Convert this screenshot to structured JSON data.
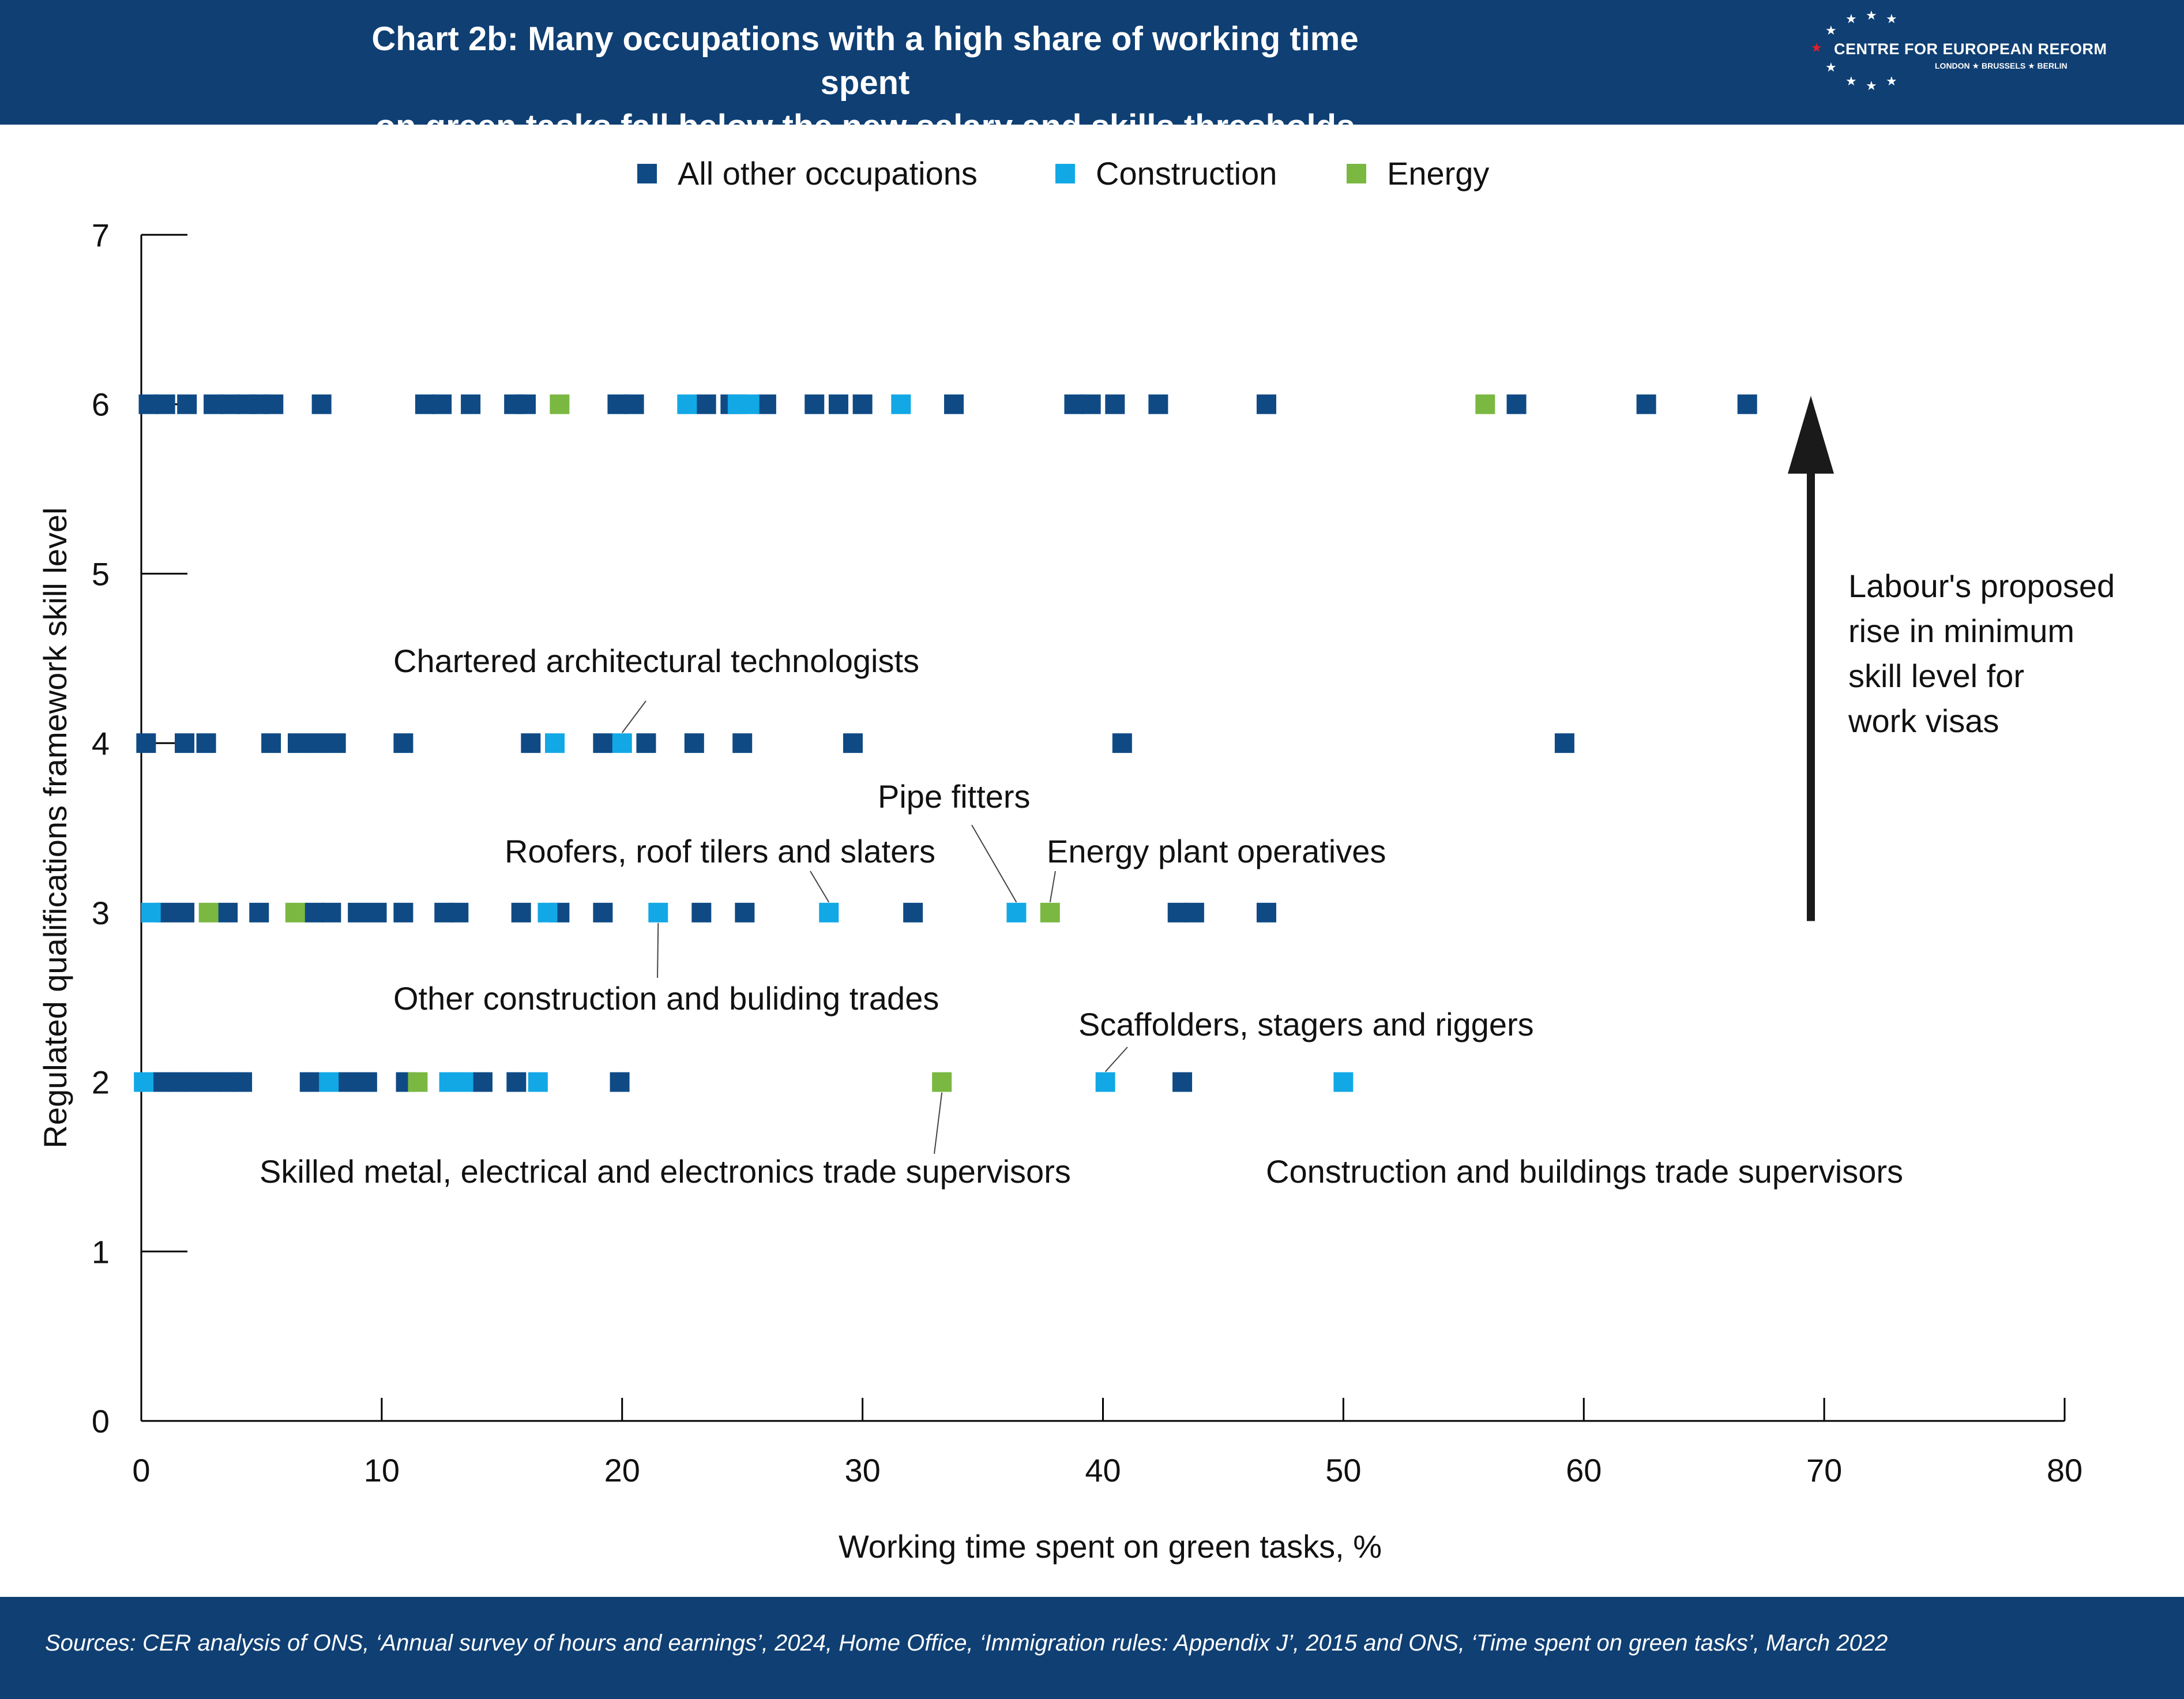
{
  "header": {
    "title_line1": "Chart 2b: Many occupations with a high share of working time spent",
    "title_line2": "on green tasks fall below the new salary and skills thresholds",
    "logo_name": "CENTRE FOR EUROPEAN REFORM",
    "logo_cities": "LONDON ★ BRUSSELS ★ BERLIN"
  },
  "footer": {
    "sources": "Sources: CER analysis of ONS, ‘Annual survey of hours and earnings’, 2024, Home Office, ‘Immigration rules: Appendix J’, 2015 and ONS, ‘Time spent on green tasks’, March 2022"
  },
  "colors": {
    "header_bg": "#0f3f73",
    "All other occupations": "#0f4a85",
    "Construction": "#12a8e6",
    "Energy": "#7ab842"
  },
  "chart_data": {
    "type": "scatter",
    "xlabel": "Working time spent on green tasks, %",
    "ylabel": "Regulated qualifications framework skill level",
    "xlim": [
      0,
      80
    ],
    "ylim": [
      0,
      7
    ],
    "x_ticks": [
      0,
      10,
      20,
      30,
      40,
      50,
      60,
      70,
      80
    ],
    "y_ticks": [
      0,
      1,
      2,
      3,
      4,
      5,
      6,
      7
    ],
    "legend_position": "top-center",
    "series": [
      {
        "name": "All other occupations",
        "points": [
          [
            0.3,
            6
          ],
          [
            1,
            6
          ],
          [
            1.9,
            6
          ],
          [
            3,
            6
          ],
          [
            3.7,
            6
          ],
          [
            4.4,
            6
          ],
          [
            4.9,
            6
          ],
          [
            5.5,
            6
          ],
          [
            7.5,
            6
          ],
          [
            11.8,
            6
          ],
          [
            12.5,
            6
          ],
          [
            13.7,
            6
          ],
          [
            15.5,
            6
          ],
          [
            16,
            6
          ],
          [
            19.8,
            6
          ],
          [
            20.5,
            6
          ],
          [
            23.5,
            6
          ],
          [
            24.5,
            6
          ],
          [
            26,
            6
          ],
          [
            28,
            6
          ],
          [
            29,
            6
          ],
          [
            30,
            6
          ],
          [
            33.8,
            6
          ],
          [
            38.8,
            6
          ],
          [
            39.5,
            6
          ],
          [
            40.5,
            6
          ],
          [
            42.3,
            6
          ],
          [
            46.8,
            6
          ],
          [
            57.2,
            6
          ],
          [
            62.6,
            6
          ],
          [
            66.8,
            6
          ],
          [
            0.2,
            4
          ],
          [
            1.8,
            4
          ],
          [
            2.7,
            4
          ],
          [
            5.4,
            4
          ],
          [
            6.5,
            4
          ],
          [
            7.3,
            4
          ],
          [
            8.1,
            4
          ],
          [
            10.9,
            4
          ],
          [
            16.2,
            4
          ],
          [
            19.2,
            4
          ],
          [
            21,
            4
          ],
          [
            23,
            4
          ],
          [
            25,
            4
          ],
          [
            29.6,
            4
          ],
          [
            40.8,
            4
          ],
          [
            59.2,
            4
          ],
          [
            1,
            3
          ],
          [
            1.8,
            3
          ],
          [
            3.6,
            3
          ],
          [
            4.9,
            3
          ],
          [
            7.2,
            3
          ],
          [
            7.9,
            3
          ],
          [
            9,
            3
          ],
          [
            9.8,
            3
          ],
          [
            10.9,
            3
          ],
          [
            12.6,
            3
          ],
          [
            13.2,
            3
          ],
          [
            15.8,
            3
          ],
          [
            17.4,
            3
          ],
          [
            19.2,
            3
          ],
          [
            23.3,
            3
          ],
          [
            25.1,
            3
          ],
          [
            32.1,
            3
          ],
          [
            43.1,
            3
          ],
          [
            43.8,
            3
          ],
          [
            46.8,
            3
          ],
          [
            0.8,
            2
          ],
          [
            1.5,
            2
          ],
          [
            2.2,
            2
          ],
          [
            2.9,
            2
          ],
          [
            3.6,
            2
          ],
          [
            4.2,
            2
          ],
          [
            7,
            2
          ],
          [
            8.6,
            2
          ],
          [
            9.4,
            2
          ],
          [
            11,
            2
          ],
          [
            14.2,
            2
          ],
          [
            15.6,
            2
          ],
          [
            19.9,
            2
          ],
          [
            43.3,
            2
          ]
        ]
      },
      {
        "name": "Construction",
        "points": [
          [
            22.7,
            6
          ],
          [
            24.8,
            6
          ],
          [
            25.3,
            6
          ],
          [
            31.6,
            6
          ],
          [
            17.2,
            4
          ],
          [
            20,
            4
          ],
          [
            0.4,
            3
          ],
          [
            16.9,
            3
          ],
          [
            21.5,
            3
          ],
          [
            28.6,
            3
          ],
          [
            36.4,
            3
          ],
          [
            0.1,
            2
          ],
          [
            7.8,
            2
          ],
          [
            12.8,
            2
          ],
          [
            13.4,
            2
          ],
          [
            16.5,
            2
          ],
          [
            40.1,
            2
          ],
          [
            50,
            2
          ]
        ]
      },
      {
        "name": "Energy",
        "points": [
          [
            17.4,
            6
          ],
          [
            55.9,
            6
          ],
          [
            2.8,
            3
          ],
          [
            6.4,
            3
          ],
          [
            37.8,
            3
          ],
          [
            11.5,
            2
          ],
          [
            33.3,
            2
          ]
        ]
      }
    ],
    "annotations": [
      {
        "text": "Chartered architectural technologists",
        "point": [
          20,
          4
        ]
      },
      {
        "text": "Pipe fitters",
        "point": [
          36.4,
          3
        ]
      },
      {
        "text": "Roofers, roof tilers and slaters",
        "point": [
          28.6,
          3
        ]
      },
      {
        "text": "Energy plant operatives",
        "point": [
          37.8,
          3
        ]
      },
      {
        "text": "Other construction and buliding trades",
        "point": [
          21.5,
          3
        ]
      },
      {
        "text": "Scaffolders, stagers and riggers",
        "point": [
          40.1,
          2
        ]
      },
      {
        "text": "Skilled metal, electrical and electronics trade supervisors",
        "point": [
          33.3,
          2
        ]
      },
      {
        "text": "Construction and buildings trade supervisors",
        "point": [
          50,
          2
        ]
      }
    ],
    "arrow": {
      "text_lines": [
        "Labour's proposed",
        "rise in minimum",
        "skill level for",
        "work visas"
      ],
      "from_y": 2.95,
      "to_y": 6.05
    }
  }
}
